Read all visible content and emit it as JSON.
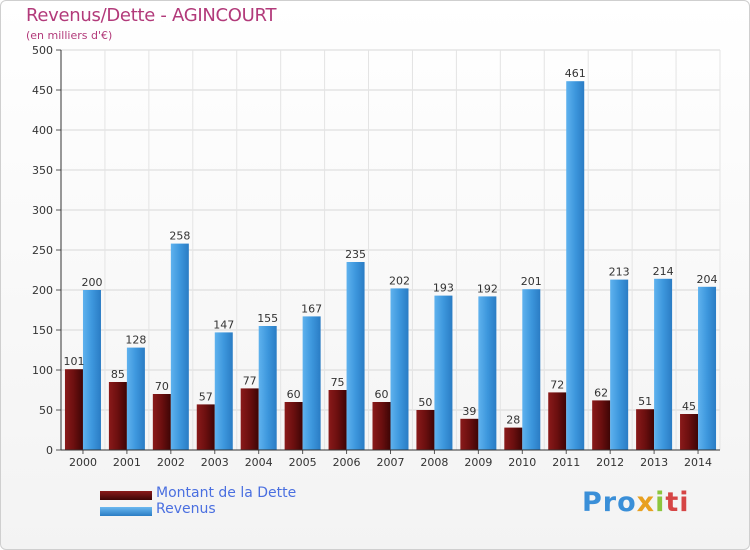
{
  "title": "Revenus/Dette - AGINCOURT",
  "subtitle": "(en milliers d'€)",
  "colors": {
    "dette": "#6b0f0f",
    "revenus": "#3d97dd",
    "title": "#b23a7a",
    "legend_text": "#4a6fe0"
  },
  "chart_data": {
    "type": "bar",
    "title": "Revenus/Dette - AGINCOURT",
    "ylabel": "",
    "xlabel": "",
    "ylim": [
      0,
      500
    ],
    "yticks": [
      0,
      50,
      100,
      150,
      200,
      250,
      300,
      350,
      400,
      450,
      500
    ],
    "grid": true,
    "legend_position": "bottom-left",
    "categories": [
      "2000",
      "2001",
      "2002",
      "2003",
      "2004",
      "2005",
      "2006",
      "2007",
      "2008",
      "2009",
      "2010",
      "2011",
      "2012",
      "2013",
      "2014"
    ],
    "series": [
      {
        "name": "Montant de la Dette",
        "values": [
          101,
          85,
          70,
          57,
          77,
          60,
          75,
          60,
          50,
          39,
          28,
          72,
          62,
          51,
          45
        ]
      },
      {
        "name": "Revenus",
        "values": [
          200,
          128,
          258,
          147,
          155,
          167,
          235,
          202,
          193,
          192,
          201,
          461,
          213,
          214,
          204
        ]
      }
    ]
  },
  "legend": [
    {
      "label": "Montant de la Dette",
      "icon": "legend-dette-swatch"
    },
    {
      "label": "Revenus",
      "icon": "legend-revenus-swatch"
    }
  ],
  "logo": {
    "part1": "Pro",
    "part2": "x",
    "part3": "i",
    "part4": "ti"
  }
}
